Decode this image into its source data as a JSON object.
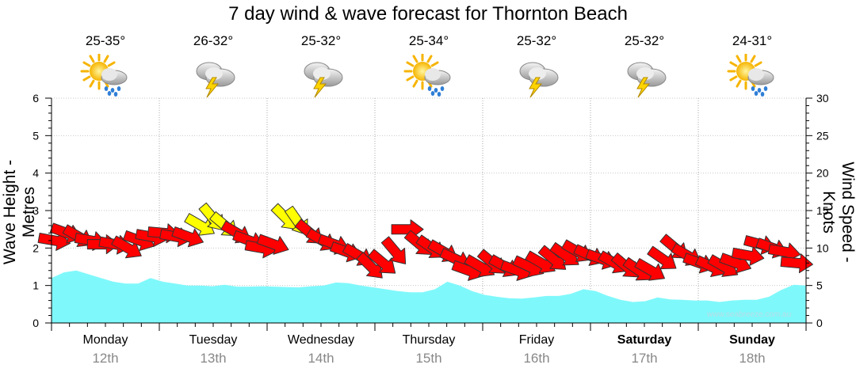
{
  "title": "7 day wind & wave forecast for Thornton Beach",
  "watermark": "www.seabreeze.com.au",
  "days": [
    {
      "name": "Monday",
      "date": "12th",
      "temp": "25-35°",
      "icon": "sun-cloud-rain-icon",
      "bold": false
    },
    {
      "name": "Tuesday",
      "date": "13th",
      "temp": "26-32°",
      "icon": "storm-icon",
      "bold": false
    },
    {
      "name": "Wednesday",
      "date": "14th",
      "temp": "25-32°",
      "icon": "storm-icon",
      "bold": false
    },
    {
      "name": "Thursday",
      "date": "15th",
      "temp": "25-34°",
      "icon": "sun-cloud-rain-icon",
      "bold": false
    },
    {
      "name": "Friday",
      "date": "16th",
      "temp": "25-32°",
      "icon": "storm-icon",
      "bold": false
    },
    {
      "name": "Saturday",
      "date": "17th",
      "temp": "25-32°",
      "icon": "storm-icon",
      "bold": true
    },
    {
      "name": "Sunday",
      "date": "18th",
      "temp": "24-31°",
      "icon": "sun-cloud-rain-icon",
      "bold": true
    }
  ],
  "chart_data": {
    "type": "area",
    "title": "7 day wind & wave forecast for Thornton Beach",
    "ylabel_left": "Wave Height - Metres",
    "ylabel_right": "Wind Speed - Knots",
    "ylim_left": [
      0,
      6
    ],
    "ylim_right": [
      0,
      30
    ],
    "yticks_left": [
      "0",
      "1",
      "2",
      "3",
      "4",
      "5",
      "6"
    ],
    "yticks_right": [
      "0",
      "5",
      "10",
      "15",
      "20",
      "25",
      "30"
    ],
    "grid": true,
    "colors": {
      "wave": "#7ff8fb",
      "wind_strong": "#ff0000",
      "wind_moderate": "#ffff00"
    },
    "wave_height": [
      1.2,
      1.35,
      1.4,
      1.3,
      1.2,
      1.1,
      1.05,
      1.05,
      1.2,
      1.1,
      1.05,
      1.0,
      1.0,
      0.98,
      1.02,
      0.97,
      0.97,
      0.98,
      0.97,
      0.96,
      0.95,
      0.98,
      1.0,
      1.08,
      1.06,
      1.0,
      0.95,
      0.9,
      0.85,
      0.82,
      0.82,
      0.9,
      1.1,
      1.0,
      0.85,
      0.75,
      0.7,
      0.66,
      0.65,
      0.68,
      0.72,
      0.72,
      0.78,
      0.9,
      0.85,
      0.72,
      0.62,
      0.56,
      0.58,
      0.68,
      0.63,
      0.62,
      0.6,
      0.6,
      0.56,
      0.6,
      0.62,
      0.62,
      0.7,
      0.88,
      1.02,
      1.0
    ],
    "wind_speed": [
      11,
      12,
      11.5,
      11,
      10.5,
      10.5,
      10,
      11,
      11.5,
      12,
      11.5,
      11.5,
      13,
      14,
      13,
      12,
      11,
      10,
      10.5,
      14,
      13.5,
      12,
      11,
      10.5,
      9.5,
      9,
      7.5,
      8,
      9.5,
      12.5,
      10.5,
      10,
      9.5,
      8.5,
      7,
      7.5,
      8,
      7.5,
      7,
      7.5,
      8,
      8.5,
      9,
      9.5,
      9,
      8.5,
      8,
      7.5,
      7,
      7,
      8.5,
      10,
      9,
      8,
      7.5,
      7.5,
      8,
      9,
      10.5,
      10,
      9.5,
      8
    ],
    "wind_dir_deg": [
      100,
      110,
      120,
      100,
      90,
      100,
      120,
      110,
      100,
      95,
      100,
      110,
      120,
      140,
      130,
      120,
      110,
      100,
      110,
      135,
      145,
      130,
      120,
      110,
      110,
      120,
      135,
      130,
      140,
      90,
      130,
      125,
      120,
      115,
      110,
      120,
      130,
      120,
      110,
      115,
      120,
      130,
      125,
      120,
      115,
      110,
      120,
      130,
      125,
      120,
      125,
      130,
      120,
      110,
      115,
      120,
      110,
      100,
      105,
      110,
      100,
      95
    ]
  }
}
